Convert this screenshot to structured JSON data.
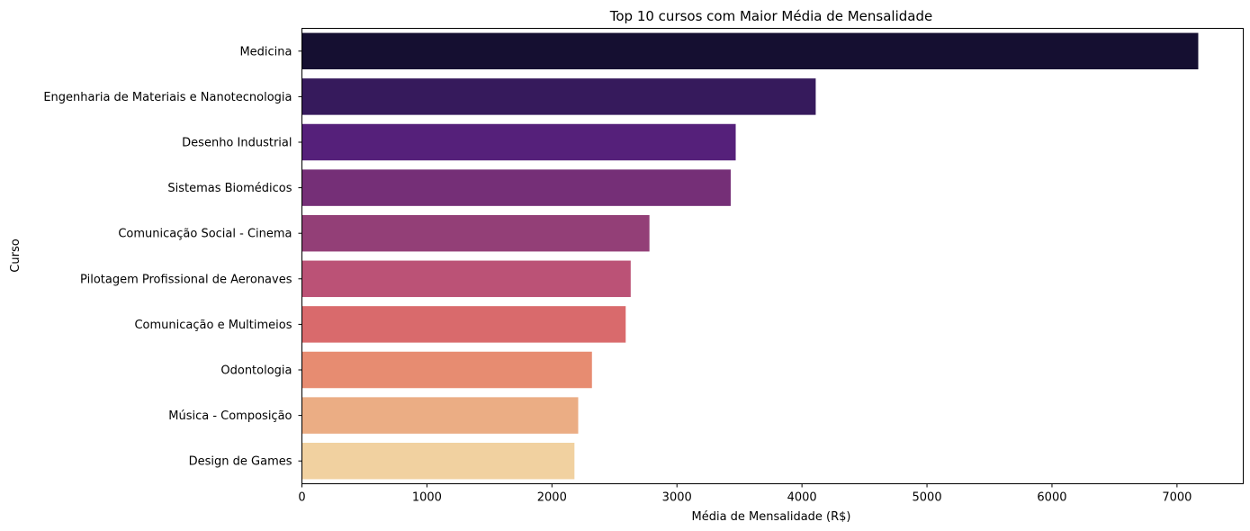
{
  "chart_data": {
    "type": "bar",
    "orientation": "horizontal",
    "title": "Top 10 cursos com Maior Média de Mensalidade",
    "xlabel": "Média de Mensalidade (R$)",
    "ylabel": "Curso",
    "xlim": [
      0,
      7530
    ],
    "xticks": [
      0,
      1000,
      2000,
      3000,
      4000,
      5000,
      6000,
      7000
    ],
    "grid": false,
    "categories": [
      "Medicina",
      "Engenharia de Materiais e Nanotecnologia",
      "Desenho Industrial",
      "Sistemas Biomédicos",
      "Comunicação Social - Cinema",
      "Pilotagem Profissional de Aeronaves",
      "Comunicação e Multimeios",
      "Odontologia",
      "Música - Composição",
      "Design de Games"
    ],
    "values": [
      7170,
      4110,
      3470,
      3430,
      2780,
      2630,
      2590,
      2320,
      2210,
      2180
    ],
    "colors": [
      "#150f31",
      "#361a5c",
      "#55207a",
      "#752f77",
      "#933f77",
      "#bb5276",
      "#d96a6c",
      "#e78c71",
      "#ebad84",
      "#f1d1a0"
    ]
  }
}
